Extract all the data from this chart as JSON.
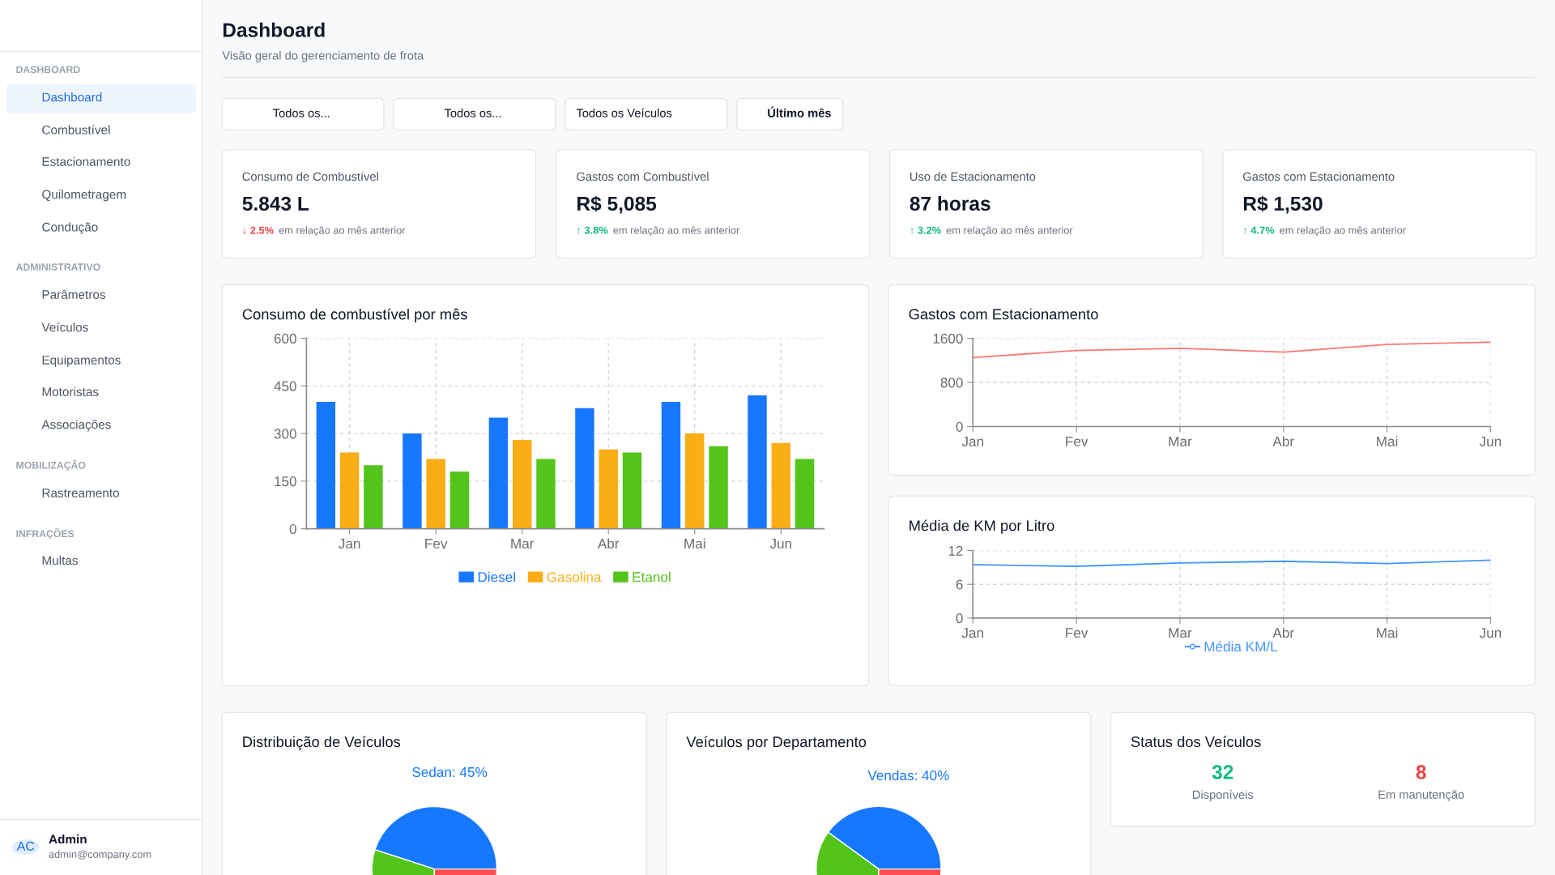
{
  "chart_data": [
    {
      "type": "other",
      "annotations": [
        "DASHBOARD",
        "Dashboard",
        "Combustível",
        "Estacionamento",
        "Quilometragem",
        "Condução",
        "ADMINISTRATIVO",
        "Parâmetros",
        "Veículos",
        "Equipamentos",
        "Motoristas",
        "Associações",
        "MOBILIZAÇÃO",
        "Rastreamento",
        "INFRAÇÕES",
        "Multas",
        "AC",
        "Admin",
        "admin@company.com"
      ]
    },
    {
      "type": "other",
      "title": "Dashboard",
      "subtitle": "Visão geral do gerenciamento de frota",
      "annotations": [
        "Todos os...",
        "Todos os...",
        "Todos os Veículos",
        "Último mês"
      ]
    },
    {
      "type": "other",
      "title": "Consumo de Combustível",
      "annotations": [
        "5.843 L",
        "↓ 2.5%",
        "em relação ao mês anterior"
      ],
      "colors": [
        "#111827",
        "#ef4444",
        "#6b7280"
      ]
    },
    {
      "type": "other",
      "title": "Gastos com Combustível",
      "annotations": [
        "R$ 5,085",
        "↑ 3.8%",
        "em relação ao mês anterior"
      ],
      "colors": [
        "#111827",
        "#10b981",
        "#6b7280"
      ]
    },
    {
      "type": "other",
      "title": "Uso de Estacionamento",
      "annotations": [
        "87 horas",
        "↑ 3.2%",
        "em relação ao mês anterior"
      ],
      "colors": [
        "#111827",
        "#10b981",
        "#6b7280"
      ]
    },
    {
      "type": "other",
      "title": "Gastos com Estacionamento",
      "annotations": [
        "R$ 1,530",
        "↑ 4.7%",
        "em relação ao mês anterior"
      ],
      "colors": [
        "#111827",
        "#10b981",
        "#6b7280"
      ]
    },
    {
      "type": "bar",
      "title": "Consumo de combustível por mês",
      "categories": [
        "Jan",
        "Fev",
        "Mar",
        "Abr",
        "Mai",
        "Jun"
      ],
      "series": [
        {
          "name": "Diesel",
          "color": "#1677ff",
          "values": [
            400,
            300,
            350,
            380,
            400,
            420
          ]
        },
        {
          "name": "Gasolina",
          "color": "#faad14",
          "values": [
            240,
            220,
            280,
            250,
            300,
            270
          ]
        },
        {
          "name": "Etanol",
          "color": "#52c41a",
          "values": [
            200,
            180,
            220,
            240,
            260,
            220
          ]
        }
      ],
      "ylim": [
        0,
        600
      ],
      "yticks": [
        0,
        150,
        300,
        450,
        600
      ],
      "grid": true,
      "legend": "bottom"
    },
    {
      "type": "line",
      "title": "Gastos com Estacionamento",
      "categories": [
        "Jan",
        "Fev",
        "Mar",
        "Abr",
        "Mai",
        "Jun"
      ],
      "series": [
        {
          "color": "#ff7875",
          "values": [
            1250,
            1380,
            1420,
            1350,
            1490,
            1530
          ]
        }
      ],
      "ylim": [
        0,
        1600
      ],
      "yticks": [
        0,
        800,
        1600
      ],
      "grid": true
    },
    {
      "type": "line",
      "title": "Média de KM por Litro",
      "categories": [
        "Jan",
        "Fev",
        "Mar",
        "Abr",
        "Mai",
        "Jun"
      ],
      "series": [
        {
          "name": "Média KM/L",
          "color": "#4096ff",
          "values": [
            9.5,
            9.2,
            9.8,
            10.1,
            9.7,
            10.3
          ]
        }
      ],
      "ylim": [
        0,
        12
      ],
      "yticks": [
        0,
        6,
        12
      ],
      "grid": true,
      "legend": "bottom"
    },
    {
      "type": "pie",
      "title": "Distribuição de Veículos",
      "categories": [
        "Sedan",
        null,
        null
      ],
      "values": [
        45,
        30,
        25
      ],
      "colors": [
        "#1677ff",
        "#52c41a",
        "#ff4d4f"
      ],
      "value_labels": [
        "45%",
        null,
        null
      ]
    },
    {
      "type": "pie",
      "title": "Veículos por Departamento",
      "categories": [
        "Vendas",
        null,
        null
      ],
      "values": [
        40,
        35,
        25
      ],
      "colors": [
        "#1677ff",
        "#52c41a",
        "#ff4d4f"
      ],
      "value_labels": [
        "40%",
        null,
        null
      ]
    },
    {
      "type": "other",
      "title": "Status dos Veículos",
      "annotations": [
        "32",
        "Disponíveis",
        "8",
        "Em manutenção"
      ],
      "colors": [
        "#10b981",
        "#6b7280",
        "#ef4444",
        "#6b7280"
      ]
    }
  ]
}
